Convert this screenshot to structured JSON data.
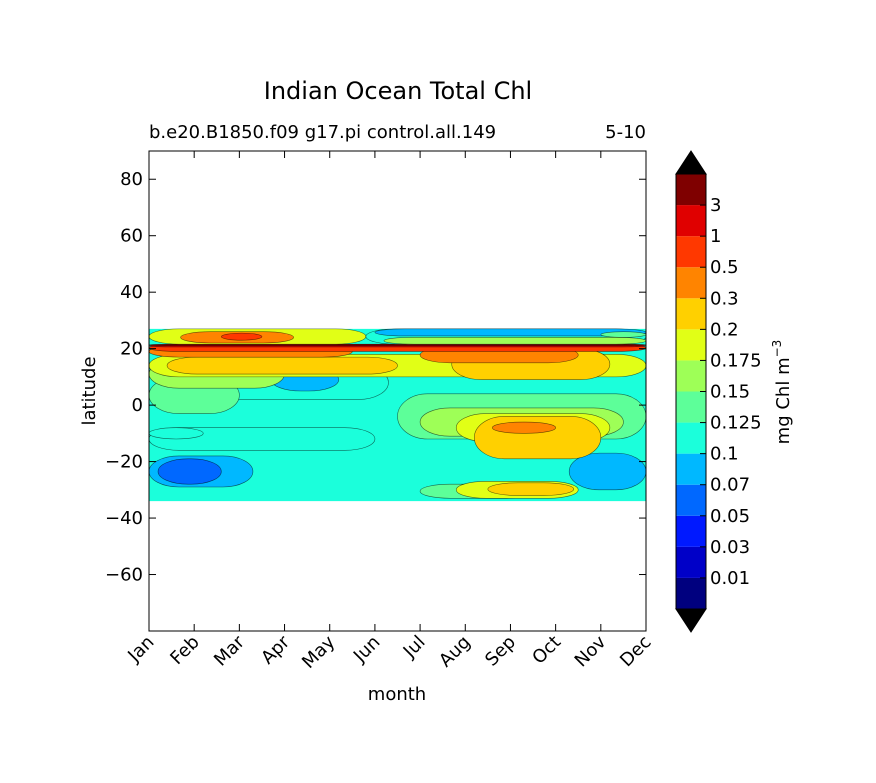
{
  "chart_data": {
    "type": "filled-contour",
    "title": "Indian Ocean Total Chl",
    "subtitle_left": "b.e20.B1850.f09 g17.pi control.all.149",
    "subtitle_right": "5-10",
    "xlabel": "month",
    "ylabel": "latitude",
    "x_ticks": [
      "Jan",
      "Feb",
      "Mar",
      "Apr",
      "May",
      "Jun",
      "Jul",
      "Aug",
      "Sep",
      "Oct",
      "Nov",
      "Dec"
    ],
    "xlim": [
      0,
      11
    ],
    "ylim": [
      -80,
      90
    ],
    "y_ticks": [
      80,
      60,
      40,
      20,
      0,
      -20,
      -40,
      -60
    ],
    "data_lat_range": [
      -34,
      27
    ],
    "colorbar": {
      "label": "mg Chl m",
      "label_exponent": "−3",
      "levels": [
        "0.01",
        "0.03",
        "0.05",
        "0.07",
        "0.1",
        "0.125",
        "0.15",
        "0.175",
        "0.2",
        "0.3",
        "0.5",
        "1",
        "3"
      ],
      "colors": [
        "#00007f",
        "#0000c8",
        "#0019ff",
        "#0068ff",
        "#00b8ff",
        "#1bffdb",
        "#5dff99",
        "#9eff57",
        "#e1ff16",
        "#ffd000",
        "#ff8400",
        "#ff3800",
        "#e00000",
        "#7f0000"
      ],
      "extend": "both",
      "under_color": "#000000",
      "over_color": "#000000"
    },
    "background_level": "0.1",
    "bands": [
      {
        "level": "0.125",
        "lat": [
          -33,
          -28
        ],
        "months": [
          6,
          8.5
        ]
      },
      {
        "level": "0.175",
        "lat": [
          -33,
          -27
        ],
        "months": [
          6.8,
          9.5
        ]
      },
      {
        "level": "0.2",
        "lat": [
          -32,
          -27.5
        ],
        "months": [
          7.5,
          9.4
        ]
      },
      {
        "level": "0.07",
        "lat": [
          -29,
          -18
        ],
        "months": [
          0,
          2.3
        ]
      },
      {
        "level": "0.05",
        "lat": [
          -28,
          -19
        ],
        "months": [
          0.2,
          1.6
        ]
      },
      {
        "level": "0.07",
        "lat": [
          -30,
          -17
        ],
        "months": [
          9.3,
          11
        ]
      },
      {
        "level": "0.1",
        "lat": [
          -16,
          -8
        ],
        "months": [
          0,
          5
        ]
      },
      {
        "level": "0.125",
        "lat": [
          -12,
          4
        ],
        "months": [
          5.5,
          11
        ]
      },
      {
        "level": "0.15",
        "lat": [
          -11,
          -1
        ],
        "months": [
          6,
          10.5
        ]
      },
      {
        "level": "0.175",
        "lat": [
          -13,
          -3
        ],
        "months": [
          6.8,
          10.2
        ]
      },
      {
        "level": "0.2",
        "lat": [
          -19,
          -4
        ],
        "months": [
          7.2,
          10
        ]
      },
      {
        "level": "0.3",
        "lat": [
          -10,
          -6
        ],
        "months": [
          7.6,
          9
        ]
      },
      {
        "level": "0.1",
        "lat": [
          -12,
          -8
        ],
        "months": [
          0,
          1.2
        ]
      },
      {
        "level": "0.1",
        "lat": [
          2,
          14
        ],
        "months": [
          1,
          5.3
        ]
      },
      {
        "level": "0.07",
        "lat": [
          5,
          13
        ],
        "months": [
          2.7,
          4.2
        ]
      },
      {
        "level": "0.125",
        "lat": [
          -3,
          10
        ],
        "months": [
          0,
          2
        ]
      },
      {
        "level": "0.15",
        "lat": [
          6,
          16
        ],
        "months": [
          0,
          3
        ]
      },
      {
        "level": "0.175",
        "lat": [
          10,
          18
        ],
        "months": [
          0,
          11
        ]
      },
      {
        "level": "0.2",
        "lat": [
          11,
          17
        ],
        "months": [
          0.4,
          5.5
        ]
      },
      {
        "level": "0.2",
        "lat": [
          9,
          20
        ],
        "months": [
          6.7,
          10.2
        ]
      },
      {
        "level": "0.3",
        "lat": [
          15,
          20.5
        ],
        "months": [
          6,
          9.5
        ]
      },
      {
        "level": "0.3",
        "lat": [
          17,
          21
        ],
        "months": [
          0,
          4.5
        ]
      },
      {
        "level": "0.5",
        "lat": [
          19,
          21.5
        ],
        "months": [
          0,
          11
        ]
      },
      {
        "level": "1",
        "lat": [
          20.6,
          21.4
        ],
        "months": [
          0,
          11
        ]
      },
      {
        "level": "3",
        "lat": [
          21.1,
          21.6
        ],
        "months": [
          0,
          11
        ]
      },
      {
        "level": "0.175",
        "lat": [
          21.6,
          27
        ],
        "months": [
          0,
          4.8
        ]
      },
      {
        "level": "0.3",
        "lat": [
          22,
          26
        ],
        "months": [
          0.7,
          3.2
        ]
      },
      {
        "level": "0.5",
        "lat": [
          23,
          25.5
        ],
        "months": [
          1.6,
          2.5
        ]
      },
      {
        "level": "0.1",
        "lat": [
          21.6,
          27
        ],
        "months": [
          4.8,
          11
        ]
      },
      {
        "level": "0.07",
        "lat": [
          24.5,
          27
        ],
        "months": [
          5,
          11
        ]
      },
      {
        "level": "0.15",
        "lat": [
          21.6,
          24
        ],
        "months": [
          5.2,
          11
        ]
      },
      {
        "level": "0.125",
        "lat": [
          24,
          26
        ],
        "months": [
          10,
          11
        ]
      }
    ]
  }
}
